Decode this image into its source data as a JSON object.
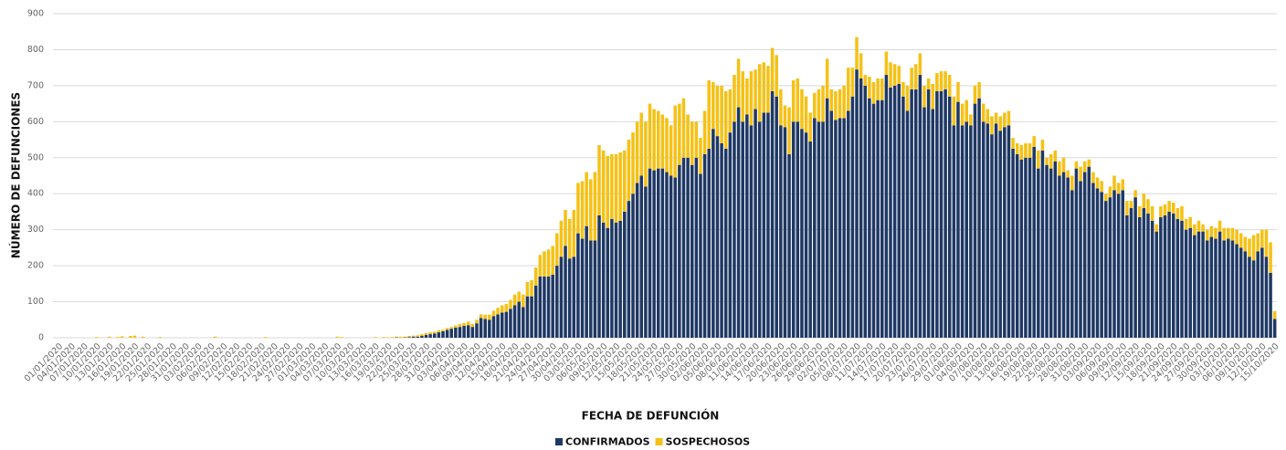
{
  "chart_data": {
    "type": "bar",
    "stacked": true,
    "grid": true,
    "y_label": "NÚMERO DE DEFUNCIONES",
    "x_label": "FECHA DE DEFUNCIÓN",
    "ylim": [
      0,
      900
    ],
    "yticks": [
      0,
      100,
      200,
      300,
      400,
      500,
      600,
      700,
      800,
      900
    ],
    "categories": [
      "01/01/2020",
      null,
      null,
      "04/01/2020",
      null,
      null,
      "07/01/2020",
      null,
      null,
      "10/01/2020",
      null,
      null,
      "13/01/2020",
      null,
      null,
      "16/01/2020",
      null,
      null,
      "19/01/2020",
      null,
      null,
      "22/01/2020",
      null,
      null,
      "25/01/2020",
      null,
      null,
      "28/01/2020",
      null,
      null,
      "31/01/2020",
      null,
      null,
      "03/02/2020",
      null,
      null,
      "06/02/2020",
      null,
      null,
      "09/02/2020",
      null,
      null,
      "12/02/2020",
      null,
      null,
      "15/02/2020",
      null,
      null,
      "18/02/2020",
      null,
      null,
      "21/02/2020",
      null,
      null,
      "24/02/2020",
      null,
      null,
      "27/02/2020",
      null,
      null,
      "01/03/2020",
      null,
      null,
      "04/03/2020",
      null,
      null,
      "07/03/2020",
      null,
      null,
      "10/03/2020",
      null,
      null,
      "13/03/2020",
      null,
      null,
      "16/03/2020",
      null,
      null,
      "19/03/2020",
      null,
      null,
      "22/03/2020",
      null,
      null,
      "25/03/2020",
      null,
      null,
      "28/03/2020",
      null,
      null,
      "31/03/2020",
      null,
      null,
      "03/04/2020",
      null,
      null,
      "06/04/2020",
      null,
      null,
      "09/04/2020",
      null,
      null,
      "12/04/2020",
      null,
      null,
      "15/04/2020",
      null,
      null,
      "18/04/2020",
      null,
      null,
      "21/04/2020",
      null,
      null,
      "24/04/2020",
      null,
      null,
      "27/04/2020",
      null,
      null,
      "30/04/2020",
      null,
      null,
      "03/05/2020",
      null,
      null,
      "06/05/2020",
      null,
      null,
      "09/05/2020",
      null,
      null,
      "12/05/2020",
      null,
      null,
      "15/05/2020",
      null,
      null,
      "18/05/2020",
      null,
      null,
      "21/05/2020",
      null,
      null,
      "24/05/2020",
      null,
      null,
      "27/05/2020",
      null,
      null,
      "30/05/2020",
      null,
      null,
      "02/06/2020",
      null,
      null,
      "05/06/2020",
      null,
      null,
      "08/06/2020",
      null,
      null,
      "11/06/2020",
      null,
      null,
      "14/06/2020",
      null,
      null,
      "17/06/2020",
      null,
      null,
      "20/06/2020",
      null,
      null,
      "23/06/2020",
      null,
      null,
      "26/06/2020",
      null,
      null,
      "29/06/2020",
      null,
      null,
      "02/07/2020",
      null,
      null,
      "05/07/2020",
      null,
      null,
      "08/07/2020",
      null,
      null,
      "11/07/2020",
      null,
      null,
      "14/07/2020",
      null,
      null,
      "17/07/2020",
      null,
      null,
      "20/07/2020",
      null,
      null,
      "23/07/2020",
      null,
      null,
      "26/07/2020",
      null,
      null,
      "29/07/2020",
      null,
      null,
      "01/08/2020",
      null,
      null,
      "04/08/2020",
      null,
      null,
      "07/08/2020",
      null,
      null,
      "10/08/2020",
      null,
      null,
      "13/08/2020",
      null,
      null,
      "16/08/2020",
      null,
      null,
      "19/08/2020",
      null,
      null,
      "22/08/2020",
      null,
      null,
      "25/08/2020",
      null,
      null,
      "28/08/2020",
      null,
      null,
      "31/08/2020",
      null,
      null,
      "03/09/2020",
      null,
      null,
      "06/09/2020",
      null,
      null,
      "09/09/2020",
      null,
      null,
      "12/09/2020",
      null,
      null,
      "15/09/2020",
      null,
      null,
      "18/09/2020",
      null,
      null,
      "21/09/2020",
      null,
      null,
      "24/09/2020",
      null,
      null,
      "27/09/2020",
      null,
      null,
      "30/09/2020",
      null,
      null,
      "03/10/2020",
      null,
      null,
      "06/10/2020",
      null,
      null,
      "09/10/2020",
      null,
      null,
      "12/10/2020",
      null,
      null,
      "15/10/2020"
    ],
    "series": [
      {
        "name": "CONFIRMADOS",
        "color": "#1f3864",
        "values": [
          0,
          0,
          0,
          0,
          0,
          0,
          0,
          0,
          0,
          0,
          0,
          0,
          0,
          0,
          0,
          0,
          0,
          0,
          0,
          0,
          0,
          0,
          0,
          0,
          0,
          0,
          0,
          0,
          0,
          0,
          0,
          0,
          0,
          0,
          0,
          0,
          0,
          0,
          0,
          0,
          0,
          0,
          0,
          0,
          0,
          0,
          0,
          0,
          0,
          0,
          0,
          0,
          0,
          0,
          0,
          0,
          0,
          0,
          0,
          0,
          0,
          0,
          0,
          0,
          0,
          0,
          0,
          0,
          0,
          0,
          0,
          0,
          0,
          0,
          0,
          0,
          0,
          0,
          0,
          0,
          1,
          0,
          1,
          2,
          3,
          3,
          5,
          8,
          10,
          12,
          15,
          18,
          22,
          25,
          28,
          30,
          33,
          35,
          30,
          40,
          55,
          52,
          50,
          60,
          65,
          70,
          72,
          80,
          90,
          100,
          85,
          115,
          115,
          145,
          170,
          170,
          170,
          175,
          200,
          225,
          255,
          220,
          225,
          290,
          275,
          310,
          270,
          270,
          340,
          320,
          305,
          330,
          320,
          325,
          350,
          380,
          400,
          430,
          450,
          420,
          470,
          465,
          470,
          470,
          460,
          450,
          445,
          480,
          500,
          500,
          480,
          500,
          455,
          510,
          525,
          580,
          560,
          540,
          525,
          570,
          600,
          640,
          600,
          620,
          590,
          635,
          600,
          625,
          625,
          685,
          670,
          590,
          585,
          510,
          600,
          600,
          580,
          570,
          545,
          610,
          600,
          600,
          665,
          630,
          605,
          610,
          610,
          630,
          670,
          745,
          720,
          700,
          665,
          650,
          660,
          660,
          730,
          695,
          700,
          705,
          670,
          630,
          690,
          690,
          730,
          640,
          690,
          635,
          685,
          685,
          690,
          670,
          590,
          655,
          590,
          600,
          590,
          650,
          665,
          600,
          595,
          565,
          595,
          575,
          585,
          590,
          525,
          510,
          495,
          500,
          500,
          530,
          470,
          520,
          480,
          470,
          490,
          450,
          460,
          445,
          410,
          470,
          435,
          460,
          475,
          430,
          415,
          405,
          380,
          390,
          410,
          400,
          410,
          340,
          360,
          390,
          335,
          360,
          345,
          325,
          295,
          335,
          340,
          350,
          345,
          330,
          325,
          300,
          305,
          285,
          295,
          295,
          270,
          280,
          275,
          295,
          270,
          275,
          270,
          260,
          250,
          240,
          225,
          215,
          240,
          250,
          225,
          180,
          52
        ]
      },
      {
        "name": "SOSPECHOSOS",
        "color": "#f5c116",
        "values": [
          0,
          0,
          0,
          0,
          0,
          0,
          0,
          0,
          0,
          2,
          0,
          0,
          3,
          0,
          2,
          4,
          0,
          5,
          6,
          0,
          3,
          0,
          0,
          0,
          2,
          0,
          0,
          0,
          0,
          0,
          0,
          0,
          0,
          0,
          0,
          0,
          0,
          3,
          0,
          0,
          0,
          0,
          0,
          0,
          0,
          0,
          0,
          0,
          0,
          2,
          0,
          0,
          0,
          0,
          0,
          0,
          0,
          0,
          0,
          0,
          0,
          0,
          0,
          0,
          0,
          0,
          3,
          2,
          0,
          0,
          0,
          0,
          0,
          0,
          0,
          2,
          0,
          2,
          1,
          2,
          2,
          3,
          2,
          3,
          3,
          4,
          5,
          5,
          5,
          5,
          6,
          4,
          5,
          5,
          6,
          8,
          8,
          10,
          8,
          10,
          10,
          12,
          14,
          15,
          18,
          20,
          22,
          25,
          30,
          28,
          35,
          40,
          45,
          50,
          60,
          70,
          75,
          80,
          90,
          100,
          100,
          110,
          130,
          140,
          160,
          150,
          170,
          190,
          195,
          200,
          200,
          180,
          190,
          190,
          170,
          170,
          170,
          170,
          175,
          180,
          180,
          170,
          160,
          150,
          150,
          140,
          200,
          170,
          165,
          120,
          120,
          100,
          100,
          120,
          190,
          130,
          140,
          160,
          160,
          120,
          130,
          135,
          140,
          100,
          150,
          110,
          160,
          140,
          130,
          120,
          115,
          100,
          60,
          130,
          115,
          120,
          110,
          100,
          80,
          70,
          90,
          100,
          110,
          60,
          80,
          80,
          90,
          120,
          80,
          90,
          70,
          30,
          60,
          60,
          60,
          60,
          65,
          70,
          60,
          50,
          40,
          70,
          60,
          70,
          60,
          60,
          30,
          70,
          50,
          55,
          50,
          60,
          80,
          55,
          60,
          60,
          30,
          50,
          45,
          50,
          40,
          50,
          30,
          40,
          40,
          40,
          30,
          30,
          40,
          40,
          40,
          30,
          50,
          30,
          20,
          40,
          30,
          40,
          40,
          20,
          40,
          20,
          40,
          30,
          20,
          30,
          30,
          30,
          20,
          30,
          40,
          30,
          30,
          40,
          20,
          20,
          30,
          40,
          40,
          40,
          20,
          30,
          30,
          30,
          30,
          30,
          40,
          30,
          30,
          30,
          30,
          20,
          30,
          30,
          30,
          30,
          35,
          30,
          35,
          40,
          40,
          40,
          50,
          70,
          50,
          50,
          75,
          85,
          22
        ]
      }
    ]
  }
}
